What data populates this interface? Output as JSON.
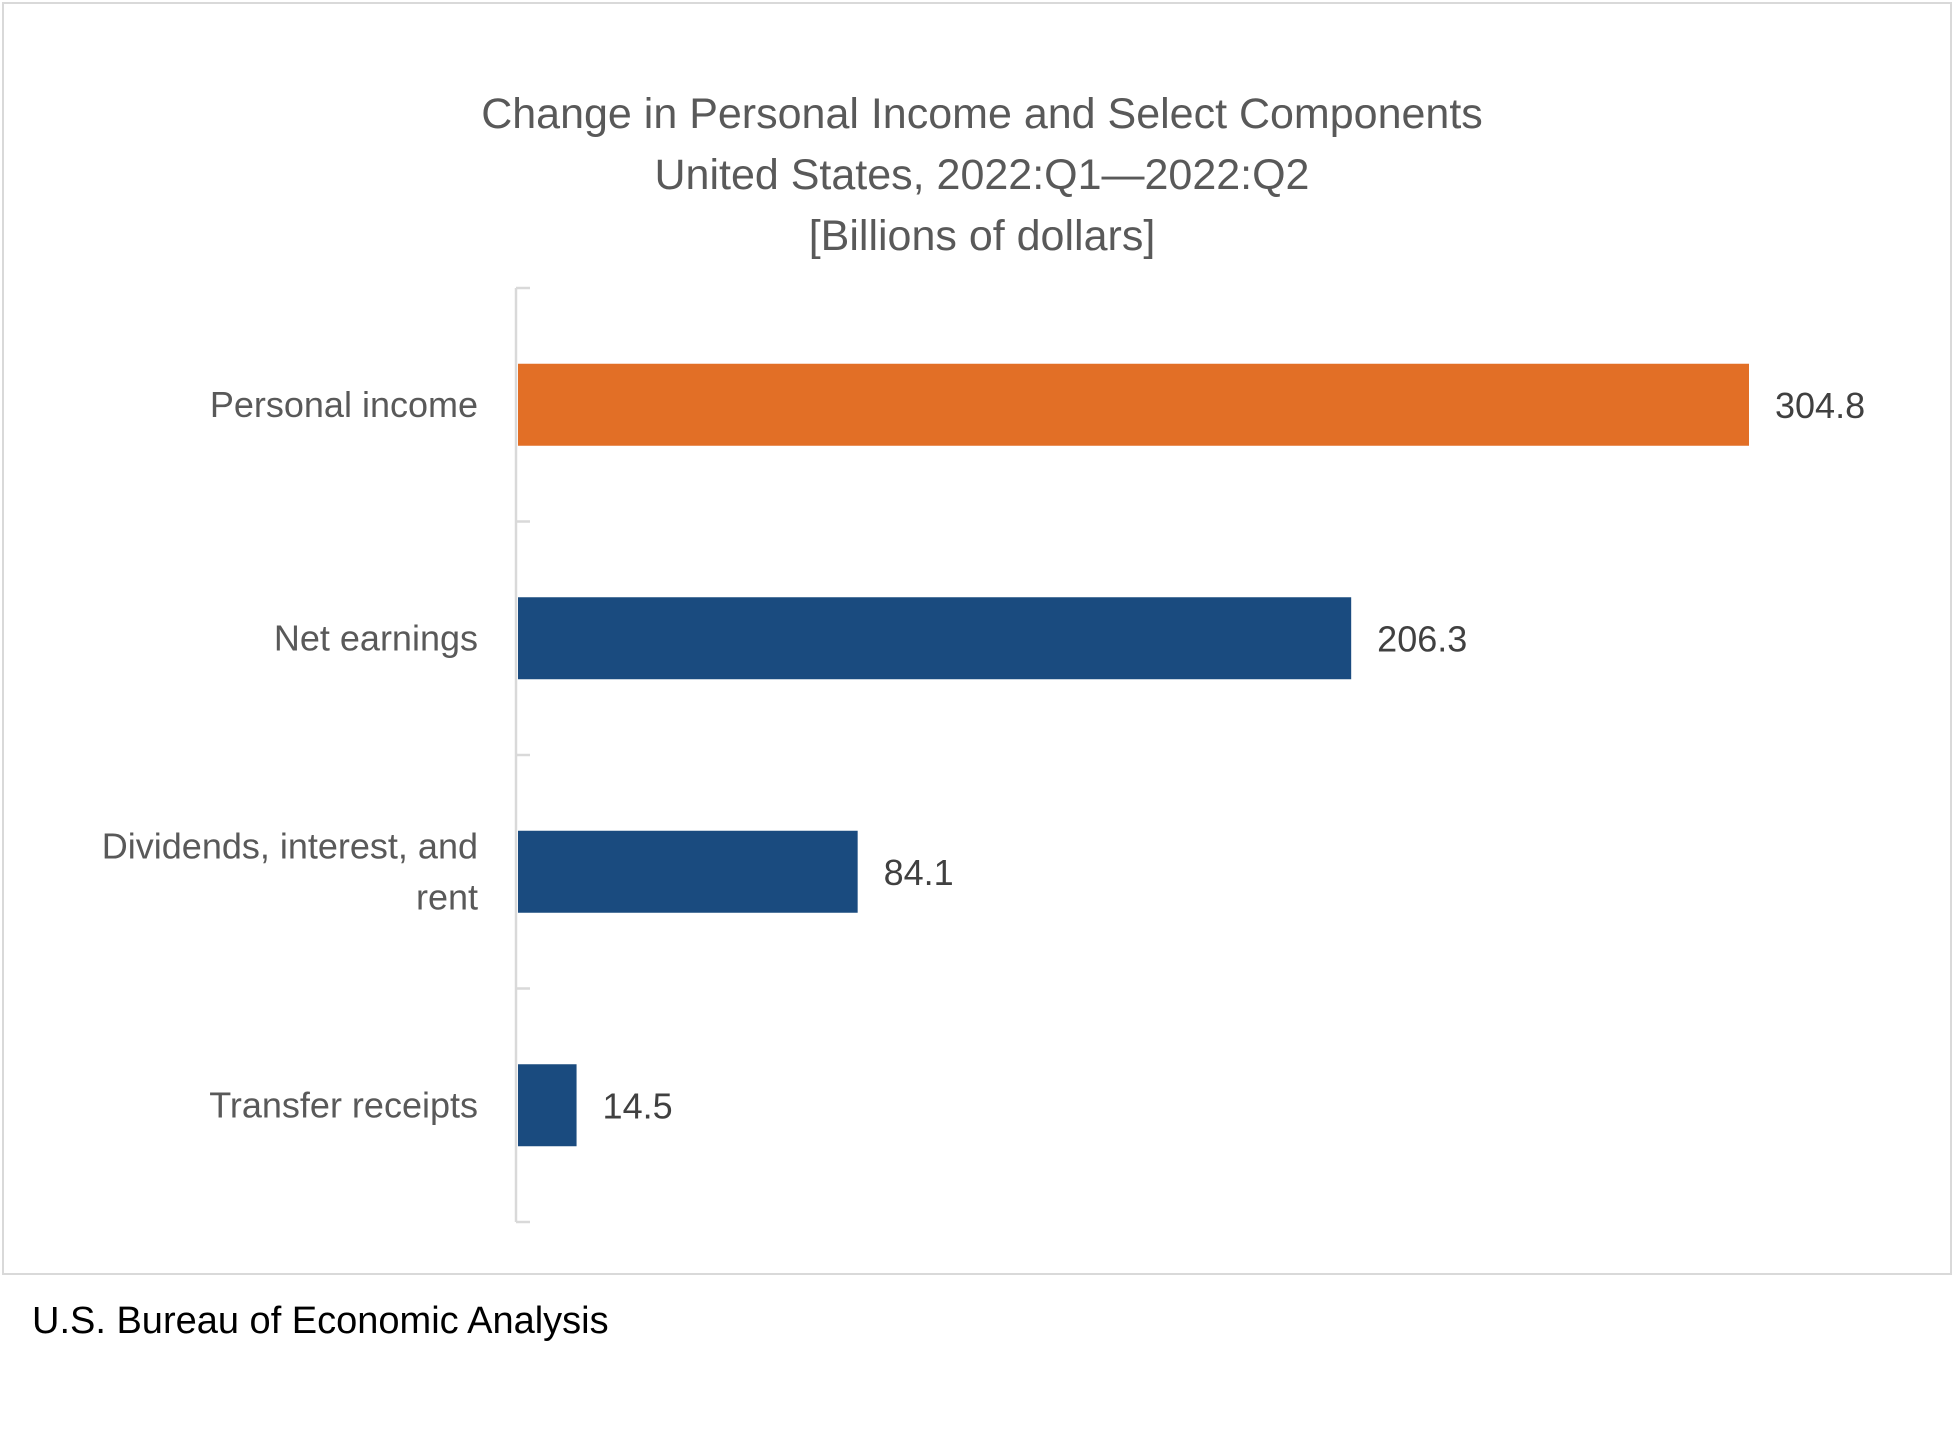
{
  "chart_data": {
    "type": "bar",
    "orientation": "horizontal",
    "title": [
      "Change in Personal Income and Select Components",
      "United States, 2022:Q1—2022:Q2",
      "[Billions of dollars]"
    ],
    "categories": [
      [
        "Personal income"
      ],
      [
        "Net earnings"
      ],
      [
        "Dividends, interest, and",
        "rent"
      ],
      [
        "Transfer receipts"
      ]
    ],
    "values": [
      304.8,
      206.3,
      84.1,
      14.5
    ],
    "value_labels": [
      "304.8",
      "206.3",
      "84.1",
      "14.5"
    ],
    "colors": [
      "#e26f26",
      "#1a4b7f",
      "#1a4b7f",
      "#1a4b7f"
    ],
    "xlim": [
      0,
      304.8
    ],
    "xlabel": "",
    "ylabel": "",
    "grid": false,
    "legend": "none",
    "axis_color": "#d9d9d9"
  },
  "source": "U.S. Bureau of Economic Analysis"
}
